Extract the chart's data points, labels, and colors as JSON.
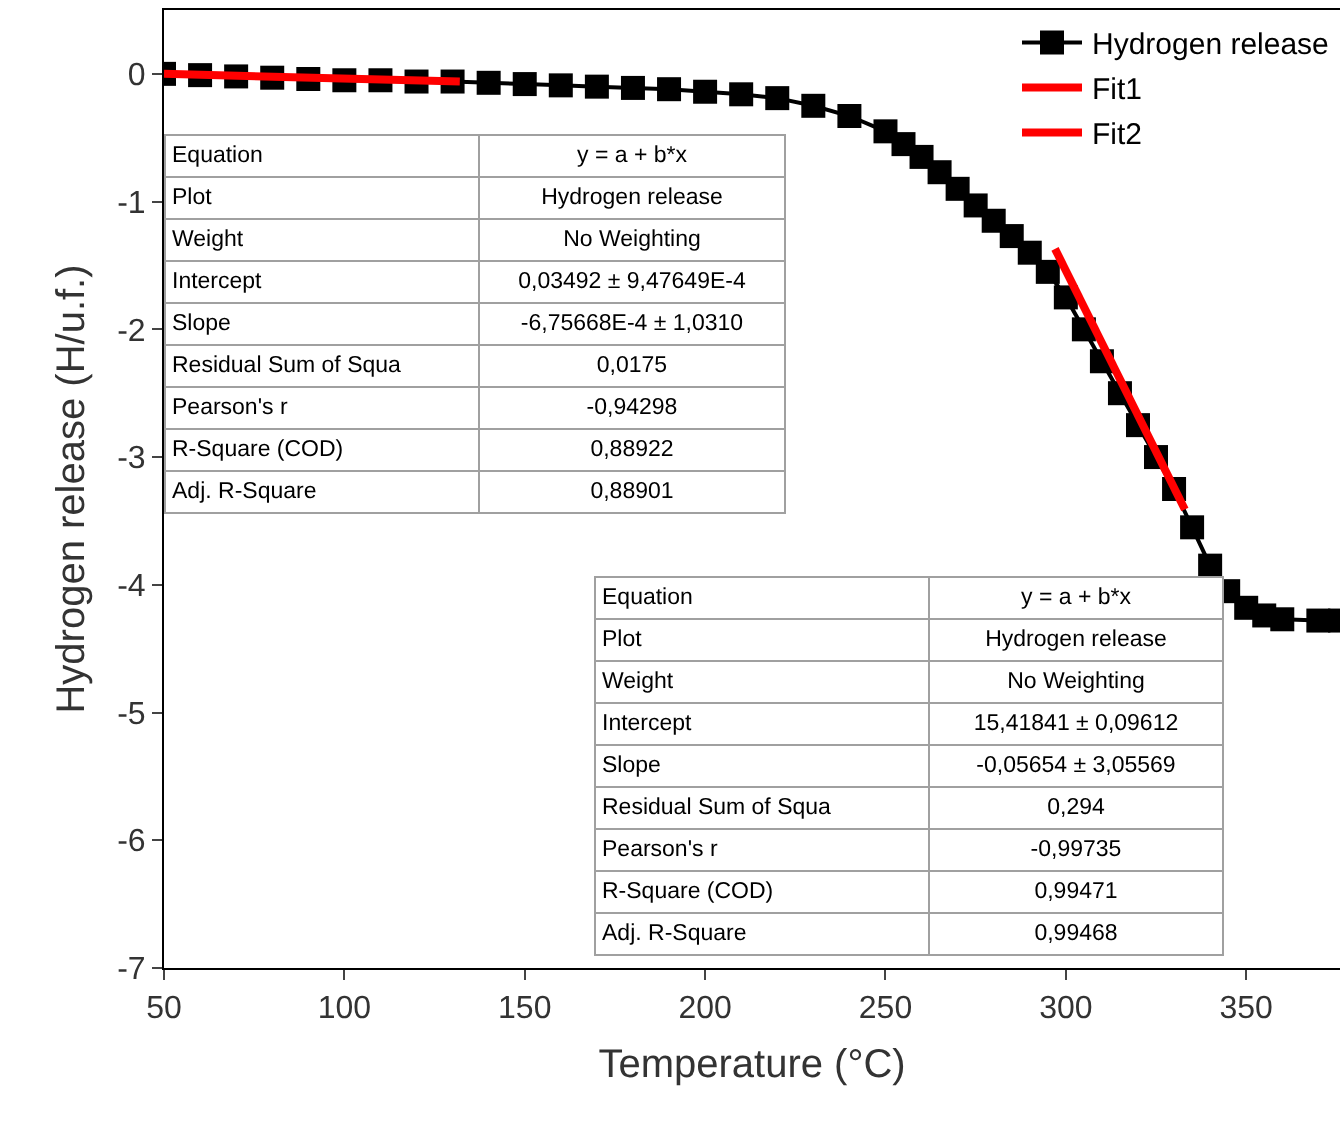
{
  "chart_data": {
    "type": "line",
    "xlabel": "Temperature (°C)",
    "ylabel": "Hydrogen release (H/u.f.)",
    "xlim": [
      50,
      376
    ],
    "xticks": [
      50,
      100,
      150,
      200,
      250,
      300,
      350
    ],
    "ylim": [
      -7,
      0.5
    ],
    "yticks": [
      0,
      -1,
      -2,
      -3,
      -4,
      -5,
      -6,
      -7
    ],
    "grid": false,
    "legend": "top right",
    "series": [
      {
        "name": "Hydrogen release",
        "color": "#000000",
        "marker": "square",
        "x": [
          50,
          60,
          70,
          80,
          90,
          100,
          110,
          120,
          130,
          140,
          150,
          160,
          170,
          180,
          190,
          200,
          210,
          220,
          230,
          240,
          250,
          255,
          260,
          265,
          270,
          275,
          280,
          285,
          290,
          295,
          300,
          305,
          310,
          315,
          320,
          325,
          330,
          335,
          340,
          345,
          350,
          355,
          360,
          370,
          376
        ],
        "values": [
          0.0,
          -0.01,
          -0.02,
          -0.03,
          -0.04,
          -0.05,
          -0.05,
          -0.06,
          -0.06,
          -0.07,
          -0.08,
          -0.09,
          -0.1,
          -0.11,
          -0.12,
          -0.14,
          -0.16,
          -0.19,
          -0.25,
          -0.33,
          -0.45,
          -0.55,
          -0.65,
          -0.77,
          -0.9,
          -1.03,
          -1.15,
          -1.27,
          -1.4,
          -1.55,
          -1.75,
          -2.0,
          -2.25,
          -2.5,
          -2.75,
          -3.0,
          -3.25,
          -3.55,
          -3.85,
          -4.05,
          -4.18,
          -4.24,
          -4.27,
          -4.28,
          -4.28
        ]
      },
      {
        "name": "Fit1",
        "color": "#ff0000",
        "marker": "none",
        "x": [
          50,
          132
        ],
        "values": [
          0.0,
          -0.06
        ]
      },
      {
        "name": "Fit2",
        "color": "#ff0000",
        "marker": "none",
        "x": [
          297,
          333
        ],
        "values": [
          -1.37,
          -3.41
        ]
      }
    ],
    "annotations": [
      "Equation",
      "y = a + b*x",
      "Plot",
      "Hydrogen release",
      "Weight",
      "No Weighting",
      "Intercept",
      "0,03492 ± 9,47649E-4",
      "Slope",
      "-6,75668E-4 ± 1,0310",
      "Residual Sum of Squa",
      "0,0175",
      "Pearson's r",
      "-0,94298",
      "R-Square (COD)",
      "0,88922",
      "Adj. R-Square",
      "0,88901",
      "Equation",
      "y = a + b*x",
      "Plot",
      "Hydrogen release",
      "Weight",
      "No Weighting",
      "Intercept",
      "15,41841 ± 0,09612",
      "Slope",
      "-0,05654 ± 3,05569",
      "Residual Sum of Squa",
      "0,294",
      "Pearson's r",
      "-0,99735",
      "R-Square (COD)",
      "0,99471",
      "Adj. R-Square",
      "0,99468"
    ]
  }
}
